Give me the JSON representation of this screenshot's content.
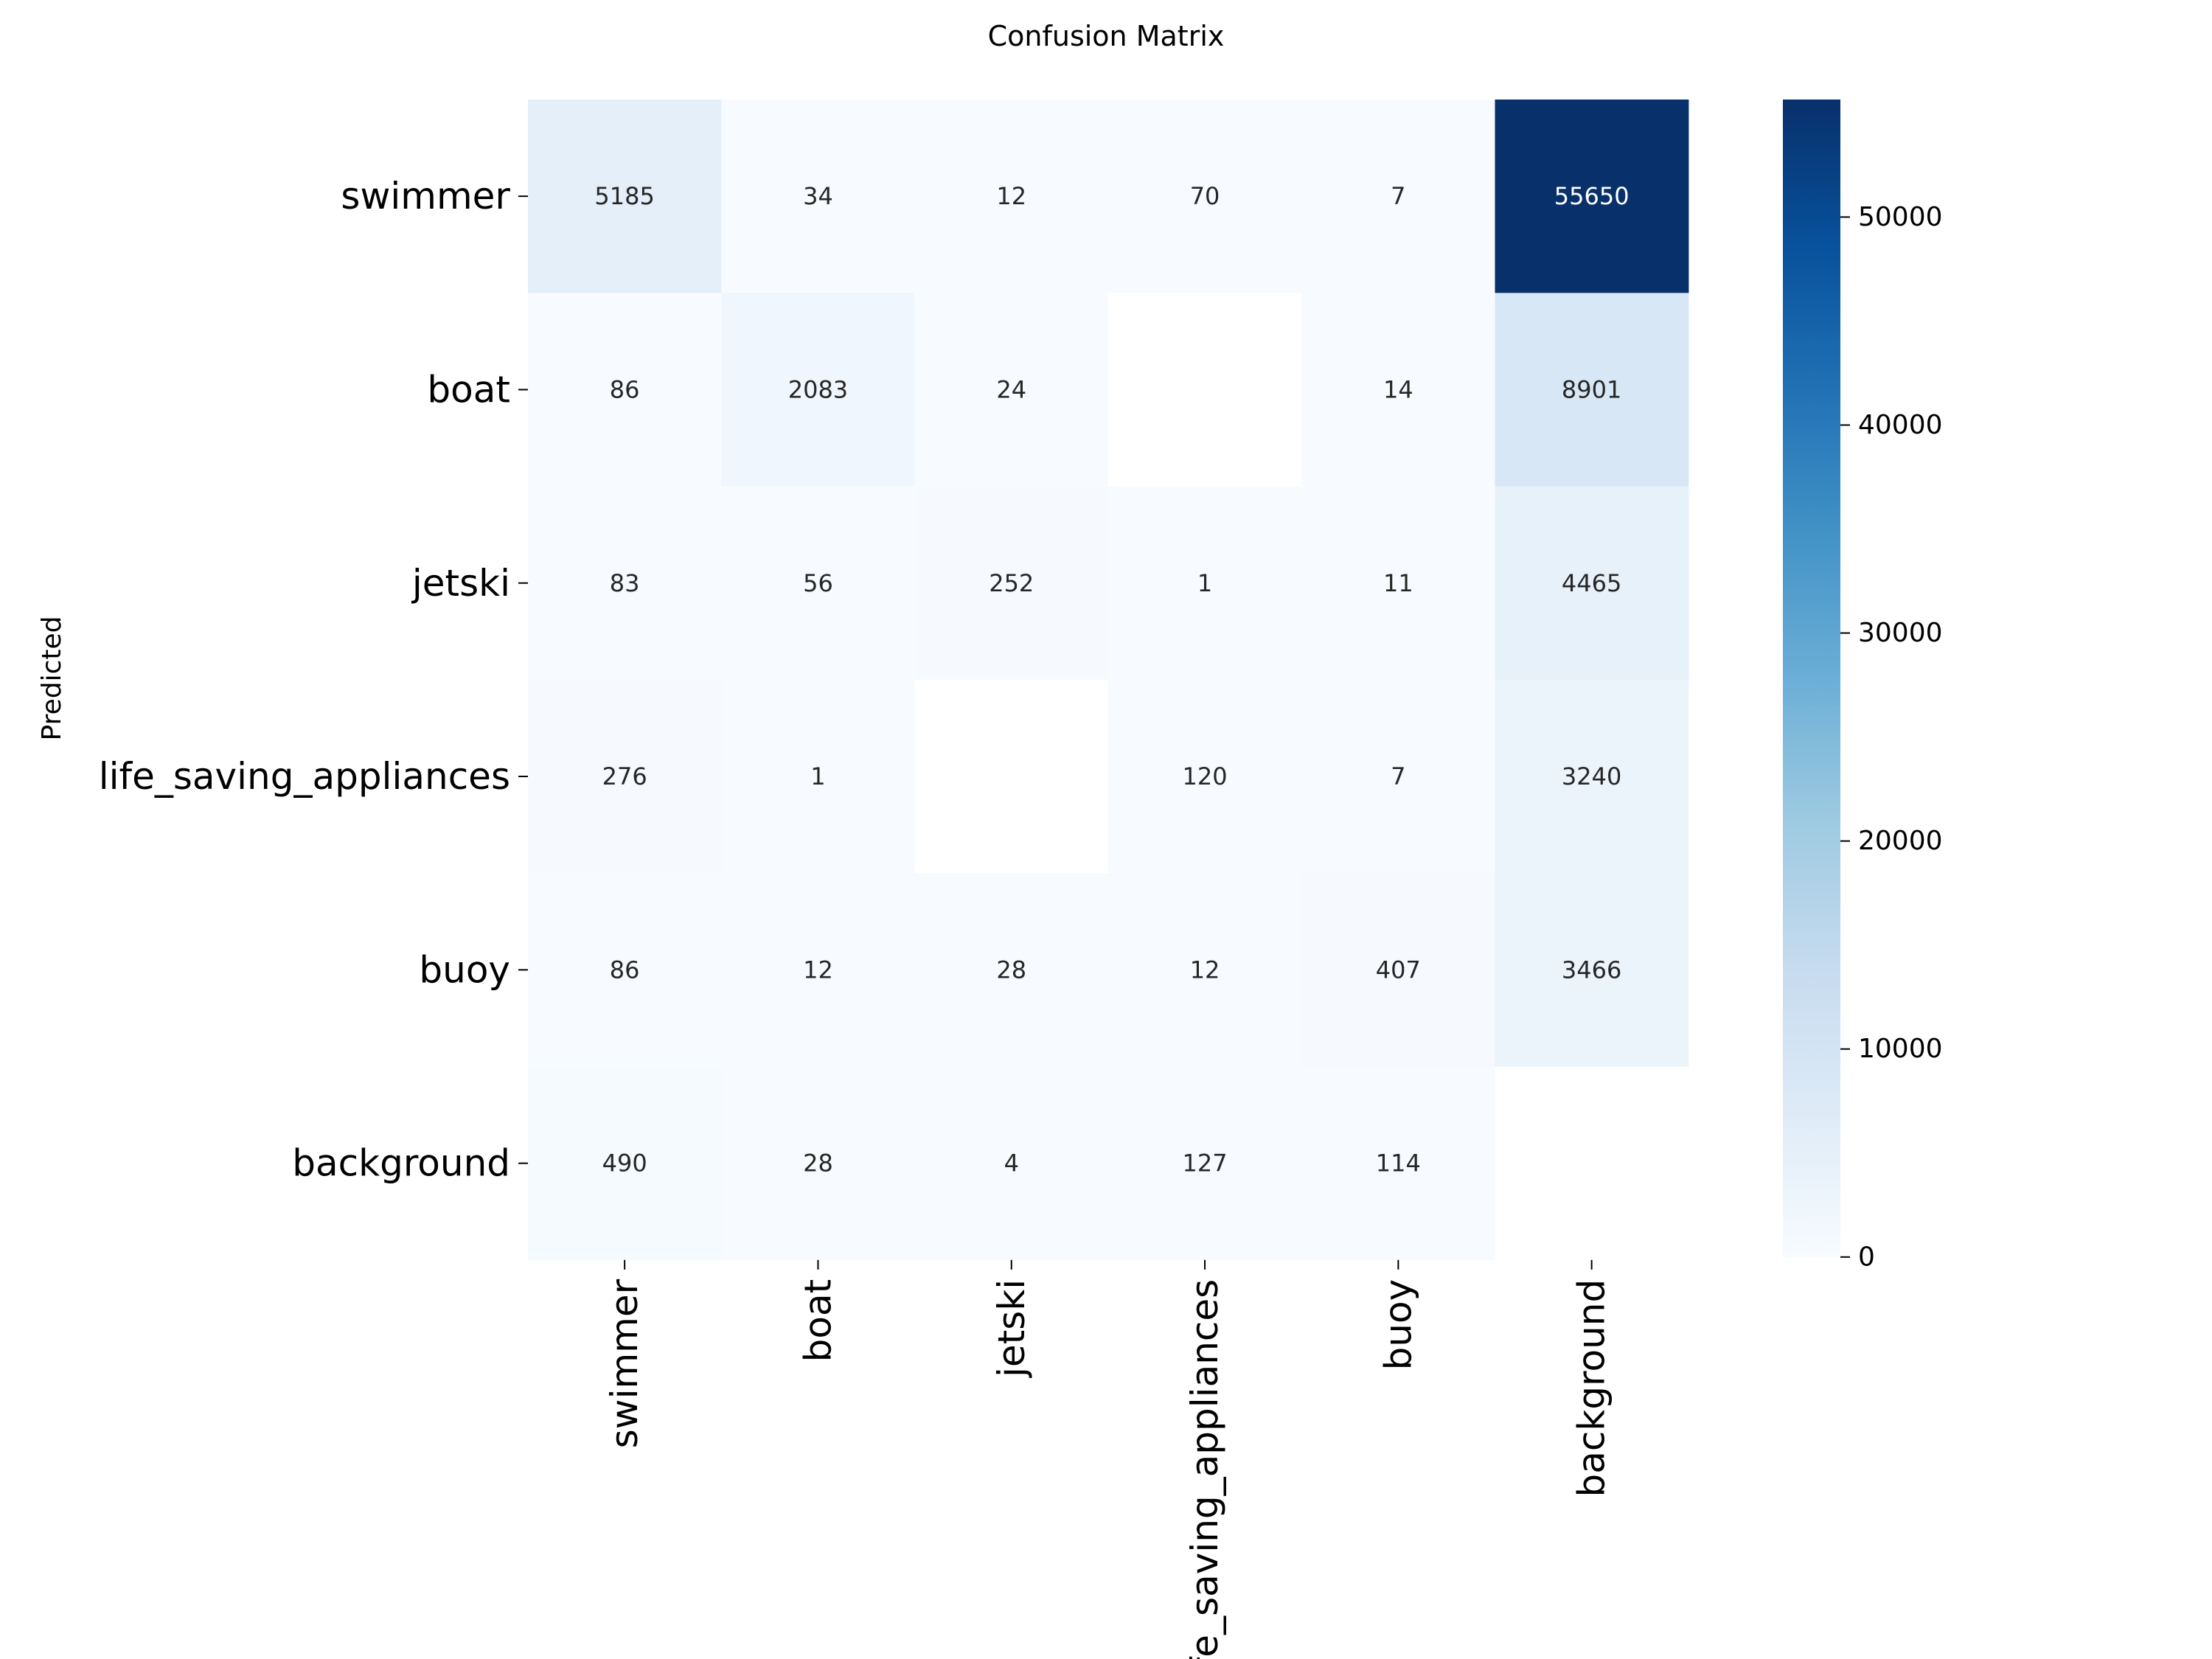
{
  "chart_data": {
    "type": "heatmap",
    "title": "Confusion Matrix",
    "xlabel": "",
    "ylabel": "Predicted",
    "x_categories": [
      "swimmer",
      "boat",
      "jetski",
      "life_saving_appliances",
      "buoy",
      "background"
    ],
    "y_categories": [
      "swimmer",
      "boat",
      "jetski",
      "life_saving_appliances",
      "buoy",
      "background"
    ],
    "values": [
      [
        5185,
        34,
        12,
        70,
        7,
        55650
      ],
      [
        86,
        2083,
        24,
        null,
        14,
        8901
      ],
      [
        83,
        56,
        252,
        1,
        11,
        4465
      ],
      [
        276,
        1,
        null,
        120,
        7,
        3240
      ],
      [
        86,
        12,
        28,
        12,
        407,
        3466
      ],
      [
        490,
        28,
        4,
        127,
        114,
        null
      ]
    ],
    "colorbar": {
      "colormap": "Blues",
      "range": [
        0,
        55650
      ],
      "ticks": [
        0,
        10000,
        20000,
        30000,
        40000,
        50000
      ]
    },
    "grid": false
  }
}
